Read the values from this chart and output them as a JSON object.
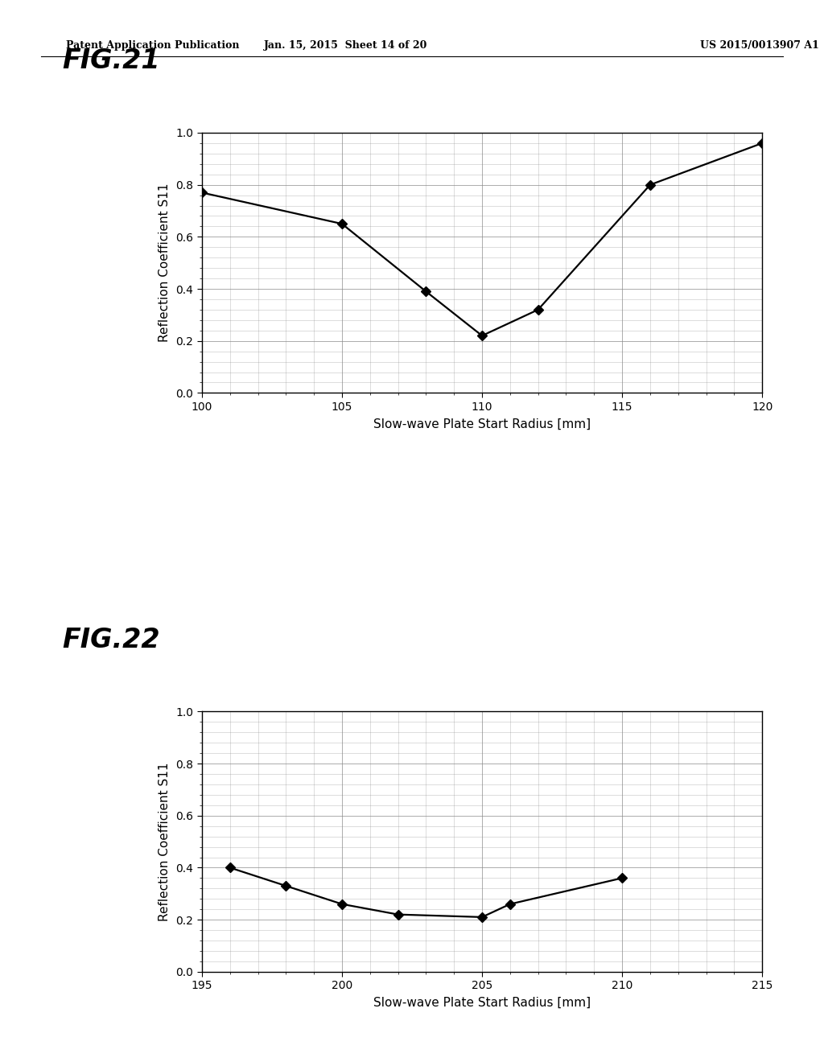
{
  "fig21": {
    "title": "FIG.21",
    "x": [
      100,
      105,
      108,
      110,
      112,
      116,
      120
    ],
    "y": [
      0.77,
      0.65,
      0.39,
      0.22,
      0.32,
      0.8,
      0.96
    ],
    "xlim": [
      100,
      120
    ],
    "ylim": [
      0.0,
      1.0
    ],
    "xticks": [
      100,
      105,
      110,
      115,
      120
    ],
    "yticks": [
      0.0,
      0.2,
      0.4,
      0.6,
      0.8,
      1.0
    ],
    "xlabel": "Slow-wave Plate Start Radius [mm]",
    "ylabel": "Reflection Coefficient S11"
  },
  "fig22": {
    "title": "FIG.22",
    "x": [
      196,
      198,
      200,
      202,
      205,
      206,
      210
    ],
    "y": [
      0.4,
      0.33,
      0.26,
      0.22,
      0.21,
      0.26,
      0.36
    ],
    "xlim": [
      195,
      215
    ],
    "ylim": [
      0.0,
      1.0
    ],
    "xticks": [
      195,
      200,
      205,
      210,
      215
    ],
    "yticks": [
      0.0,
      0.2,
      0.4,
      0.6,
      0.8,
      1.0
    ],
    "xlabel": "Slow-wave Plate Start Radius [mm]",
    "ylabel": "Reflection Coefficient S11"
  },
  "header_left": "Patent Application Publication",
  "header_center": "Jan. 15, 2015  Sheet 14 of 20",
  "header_right": "US 2015/0013907 A1",
  "bg_color": "#ffffff",
  "line_color": "#000000",
  "marker": "D",
  "marker_size": 6,
  "line_width": 1.6,
  "grid_color": "#888888",
  "grid_linewidth": 0.4,
  "grid_major_linewidth": 0.7,
  "title_fontsize": 24,
  "title_fontstyle": "italic",
  "title_fontweight": "bold",
  "axis_label_fontsize": 11,
  "tick_fontsize": 10,
  "header_fontsize": 9
}
